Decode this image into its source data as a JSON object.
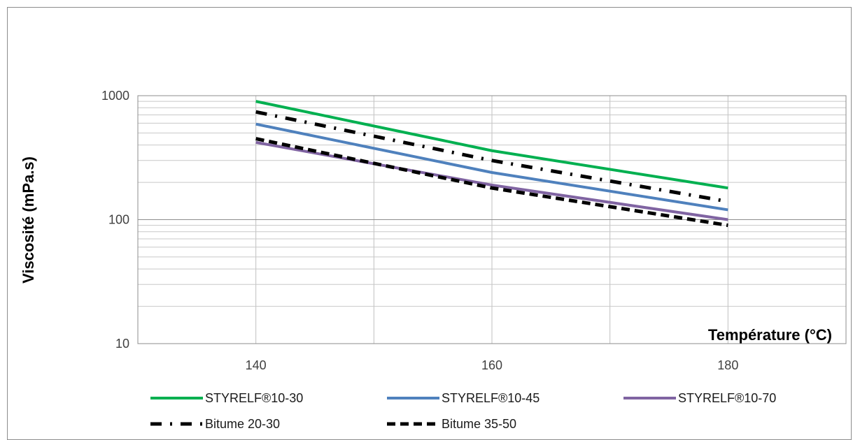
{
  "chart_data": {
    "type": "line",
    "title": "",
    "xlabel": "Température (°C)",
    "ylabel": "Viscosité (mPa.s)",
    "y_scale": "log",
    "ylim": [
      10,
      1000
    ],
    "xlim": [
      130,
      190
    ],
    "x_ticks": [
      140,
      160,
      180
    ],
    "y_ticks": [
      10,
      100,
      1000
    ],
    "grid": true,
    "legend_position": "bottom",
    "x": [
      140,
      160,
      180
    ],
    "series": [
      {
        "name": "STYRELF®10-30",
        "values": [
          900,
          360,
          180
        ],
        "color": "#00b050",
        "style": "solid"
      },
      {
        "name": "STYRELF®10-45",
        "values": [
          590,
          240,
          120
        ],
        "color": "#4f81bd",
        "style": "solid"
      },
      {
        "name": "STYRELF®10-70",
        "values": [
          420,
          190,
          100
        ],
        "color": "#8064a2",
        "style": "solid"
      },
      {
        "name": "Bitume 20-30",
        "values": [
          740,
          300,
          140
        ],
        "color": "#000000",
        "style": "dash-dot"
      },
      {
        "name": "Bitume 35-50",
        "values": [
          450,
          180,
          90
        ],
        "color": "#000000",
        "style": "dash"
      }
    ]
  }
}
